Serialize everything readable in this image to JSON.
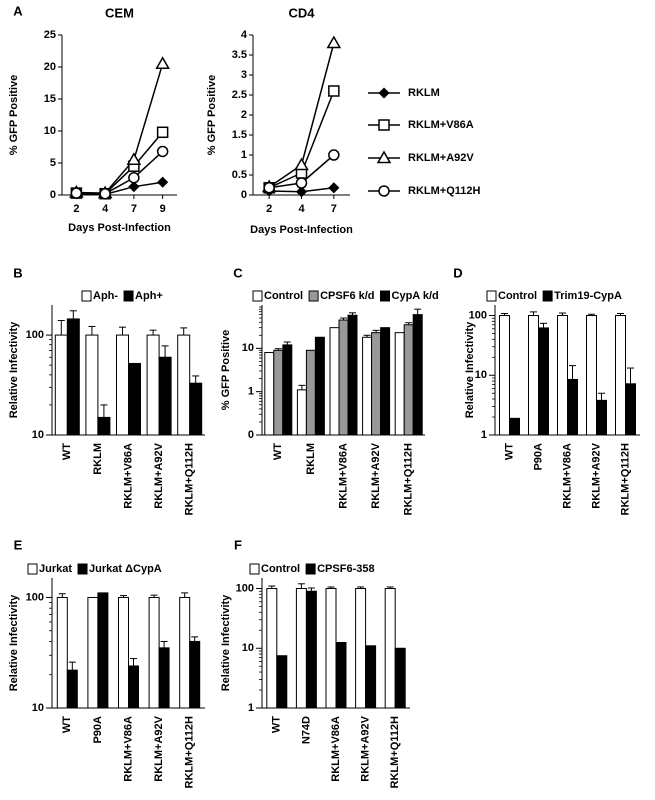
{
  "panels": [
    {
      "letter": "A",
      "legend_entries": [
        "RKLM",
        "RKLM+V86A",
        "RKLM+A92V",
        "RKLM+Q112H"
      ]
    },
    {
      "letter": "B",
      "legend_entries": [
        "Aph-",
        "Aph+"
      ]
    },
    {
      "letter": "C",
      "legend_entries": [
        "Control",
        "CPSF6 k/d",
        "CypA k/d"
      ]
    },
    {
      "letter": "D",
      "legend_entries": [
        "Control",
        "Trim19-CypA"
      ]
    },
    {
      "letter": "E",
      "legend_entries": [
        "Jurkat",
        "Jurkat ΔCypA"
      ]
    },
    {
      "letter": "F",
      "legend_entries": [
        "Control",
        "CPSF6-358"
      ]
    }
  ],
  "chart_data": [
    {
      "id": "A-CEM",
      "type": "line",
      "title": "CEM",
      "xlabel": "Days Post-Infection",
      "ylabel": "% GFP Positive",
      "x": [
        2,
        4,
        7,
        9
      ],
      "ylim": [
        0,
        25
      ],
      "yticks": [
        0,
        5,
        10,
        15,
        20,
        25
      ],
      "series": [
        {
          "name": "RKLM",
          "marker": "diamond",
          "values": [
            0.2,
            0.1,
            1.3,
            2.0
          ]
        },
        {
          "name": "RKLM+V86A",
          "marker": "square",
          "values": [
            0.3,
            0.2,
            4.5,
            9.8
          ]
        },
        {
          "name": "RKLM+A92V",
          "marker": "triangle",
          "values": [
            0.4,
            0.3,
            5.5,
            20.5
          ]
        },
        {
          "name": "RKLM+Q112H",
          "marker": "circle",
          "values": [
            0.3,
            0.2,
            2.7,
            6.8
          ]
        }
      ]
    },
    {
      "id": "A-CD4",
      "type": "line",
      "title": "CD4",
      "xlabel": "Days Post-Infection",
      "ylabel": "% GFP Positive",
      "x": [
        2,
        4,
        7
      ],
      "ylim": [
        0,
        4
      ],
      "yticks": [
        0,
        0.5,
        1,
        1.5,
        2,
        2.5,
        3,
        3.5,
        4
      ],
      "ytick_labels": [
        "0",
        "0.5",
        "1",
        "1.5",
        "2",
        "2.5",
        "3",
        "3.5",
        "4"
      ],
      "series": [
        {
          "name": "RKLM",
          "marker": "diamond",
          "values": [
            0.1,
            0.08,
            0.18
          ]
        },
        {
          "name": "RKLM+V86A",
          "marker": "square",
          "values": [
            0.18,
            0.55,
            2.6
          ]
        },
        {
          "name": "RKLM+A92V",
          "marker": "triangle",
          "values": [
            0.2,
            0.75,
            3.8
          ]
        },
        {
          "name": "RKLM+Q112H",
          "marker": "circle",
          "values": [
            0.18,
            0.3,
            1.0
          ]
        }
      ]
    },
    {
      "id": "B",
      "type": "bar",
      "ylabel": "Relative Infectivity",
      "yscale": "log",
      "ylim": [
        10,
        200
      ],
      "yticks": [
        10,
        100
      ],
      "categories": [
        "WT",
        "RKLM",
        "RKLM+V86A",
        "RKLM+A92V",
        "RKLM+Q112H"
      ],
      "series": [
        {
          "name": "Aph-",
          "color": "#ffffff",
          "values": [
            100,
            100,
            100,
            100,
            100
          ],
          "errors": [
            40,
            22,
            20,
            12,
            18
          ]
        },
        {
          "name": "Aph+",
          "color": "#000000",
          "values": [
            145,
            15,
            52,
            60,
            33
          ],
          "errors": [
            30,
            5,
            0,
            18,
            6
          ]
        }
      ]
    },
    {
      "id": "C",
      "type": "bar",
      "ylabel": "% GFP Positive",
      "yscale": "log",
      "ylim": [
        0.1,
        100
      ],
      "yticks": [
        0.1,
        1,
        10
      ],
      "ytick_labels": [
        "0",
        "1",
        "10"
      ],
      "categories": [
        "WT",
        "RKLM",
        "RKLM+V86A",
        "RKLM+A92V",
        "RKLM+Q112H"
      ],
      "series": [
        {
          "name": "Control",
          "color": "#ffffff",
          "values": [
            8,
            1.1,
            30,
            18,
            23
          ],
          "errors": [
            0,
            0.3,
            0,
            2,
            0
          ]
        },
        {
          "name": "CPSF6 k/d",
          "color": "#999999",
          "values": [
            9,
            9,
            45,
            23,
            35
          ],
          "errors": [
            0.8,
            0,
            5,
            3,
            4
          ]
        },
        {
          "name": "CypA k/d",
          "color": "#000000",
          "values": [
            12,
            18,
            58,
            30,
            60
          ],
          "errors": [
            2,
            0,
            8,
            0,
            20
          ]
        }
      ]
    },
    {
      "id": "D",
      "type": "bar",
      "ylabel": "Relative Infectivity",
      "yscale": "log",
      "ylim": [
        1,
        150
      ],
      "yticks": [
        1,
        10,
        100
      ],
      "categories": [
        "WT",
        "P90A",
        "RKLM+V86A",
        "RKLM+A92V",
        "RKLM+Q112H"
      ],
      "series": [
        {
          "name": "Control",
          "color": "#ffffff",
          "values": [
            100,
            100,
            100,
            100,
            100
          ],
          "errors": [
            8,
            15,
            10,
            5,
            8
          ]
        },
        {
          "name": "Trim19-CypA",
          "color": "#000000",
          "values": [
            1.9,
            62,
            8.5,
            3.8,
            7.2
          ],
          "errors": [
            0,
            12,
            6,
            1.2,
            6
          ]
        }
      ]
    },
    {
      "id": "E",
      "type": "bar",
      "ylabel": "Relative Infectivity",
      "yscale": "log",
      "ylim": [
        10,
        150
      ],
      "yticks": [
        10,
        100
      ],
      "categories": [
        "WT",
        "P90A",
        "RKLM+V86A",
        "RKLM+A92V",
        "RKLM+Q112H"
      ],
      "series": [
        {
          "name": "Jurkat",
          "color": "#ffffff",
          "values": [
            100,
            100,
            100,
            100,
            100
          ],
          "errors": [
            8,
            0,
            4,
            5,
            10
          ]
        },
        {
          "name": "Jurkat ΔCypA",
          "color": "#000000",
          "values": [
            22,
            110,
            24,
            35,
            40
          ],
          "errors": [
            4,
            0,
            4,
            5,
            4
          ]
        }
      ]
    },
    {
      "id": "F",
      "type": "bar",
      "ylabel": "Relative Infectivity",
      "yscale": "log",
      "ylim": [
        1,
        150
      ],
      "yticks": [
        1,
        10,
        100
      ],
      "categories": [
        "WT",
        "N74D",
        "RKLM+V86A",
        "RKLM+A92V",
        "RKLM+Q112H"
      ],
      "series": [
        {
          "name": "Control",
          "color": "#ffffff",
          "values": [
            100,
            100,
            100,
            100,
            100
          ],
          "errors": [
            10,
            20,
            6,
            6,
            6
          ]
        },
        {
          "name": "CPSF6-358",
          "color": "#000000",
          "values": [
            7.5,
            90,
            12.5,
            11,
            10
          ],
          "errors": [
            0,
            12,
            0,
            0,
            0
          ]
        }
      ]
    }
  ]
}
